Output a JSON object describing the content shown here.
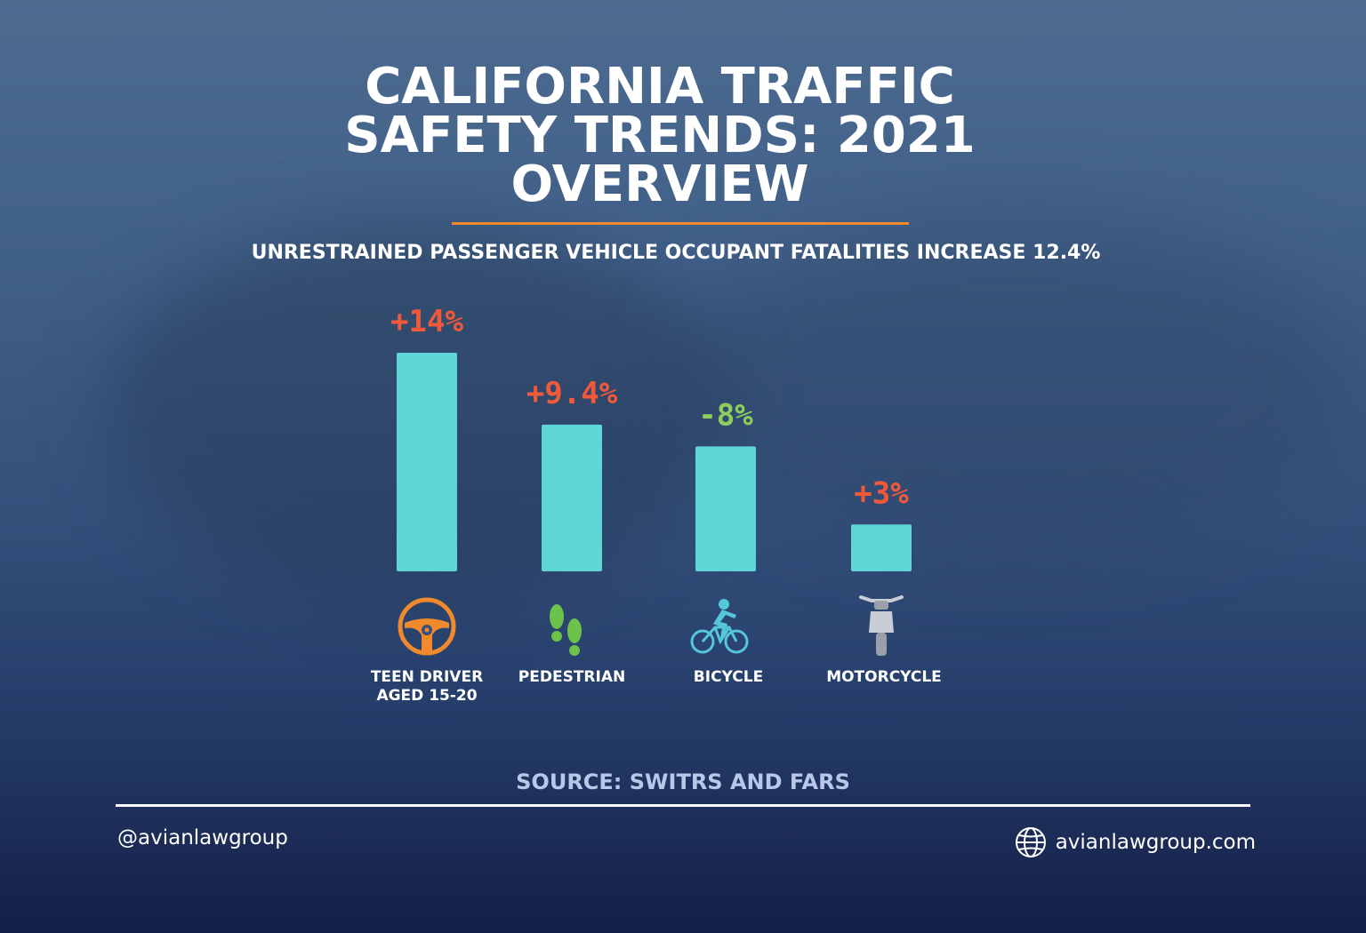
{
  "title_lines": [
    "CALIFORNIA TRAFFIC",
    "SAFETY TRENDS: 2021",
    "OVERVIEW"
  ],
  "subtitle": "UNRESTRAINED PASSENGER VEHICLE OCCUPANT FATALITIES INCREASE 12.4%",
  "colors": {
    "bar": "#5fd6d6",
    "positive_label": "#f2593b",
    "negative_label": "#8dcf5a",
    "rule": "#f08a2c"
  },
  "chart_data": {
    "type": "bar",
    "categories": [
      "TEEN DRIVER AGED 15-20",
      "PEDESTRIAN",
      "BICYCLE",
      "MOTORCYCLE"
    ],
    "category_lines": [
      [
        "TEEN DRIVER",
        "AGED 15-20"
      ],
      [
        "PEDESTRIAN"
      ],
      [
        "BICYCLE"
      ],
      [
        "MOTORCYCLE"
      ]
    ],
    "values": [
      14,
      9.4,
      -8,
      3
    ],
    "value_labels": [
      "+14%",
      "+9.4%",
      "-8%",
      "+3%"
    ],
    "icons": [
      "steering-wheel-icon",
      "footprints-icon",
      "bicycle-icon",
      "motorcycle-icon"
    ],
    "unit": "%",
    "bar_magnitude": "absolute",
    "axes_shown": false,
    "grid": false,
    "legend": false
  },
  "source": "SOURCE: SWITRS AND FARS",
  "footer": {
    "handle": "@avianlawgroup",
    "website": "avianlawgroup.com",
    "website_icon": "globe-icon"
  }
}
